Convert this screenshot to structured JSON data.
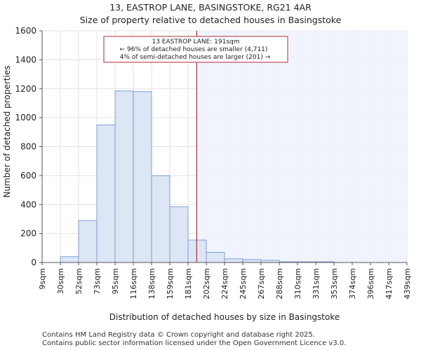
{
  "chart_data": {
    "type": "bar",
    "title": "13, EASTROP LANE, BASINGSTOKE, RG21 4AR",
    "subtitle": "Size of property relative to detached houses in Basingstoke",
    "xlabel": "Distribution of detached houses by size in Basingstoke",
    "ylabel": "Number of detached properties",
    "ylim": [
      0,
      1600
    ],
    "yticks": [
      0,
      200,
      400,
      600,
      800,
      1000,
      1200,
      1400,
      1600
    ],
    "categories": [
      "9sqm",
      "30sqm",
      "52sqm",
      "73sqm",
      "95sqm",
      "116sqm",
      "138sqm",
      "159sqm",
      "181sqm",
      "202sqm",
      "224sqm",
      "245sqm",
      "267sqm",
      "288sqm",
      "310sqm",
      "331sqm",
      "353sqm",
      "374sqm",
      "396sqm",
      "417sqm",
      "439sqm"
    ],
    "values": [
      0,
      40,
      290,
      950,
      1185,
      1180,
      600,
      385,
      155,
      70,
      25,
      20,
      15,
      5,
      5,
      5,
      0,
      0,
      0,
      0,
      0
    ],
    "marker": {
      "value_sqm": 191,
      "annotation": [
        "13 EASTROP LANE: 191sqm",
        "← 96% of detached houses are smaller (4,711)",
        "4% of semi-detached houses are larger (201) →"
      ]
    },
    "colors": {
      "bar_fill": "#dce6f5",
      "bar_stroke": "#7a9fd4",
      "marker_line": "#b22a3a",
      "highlight_region": "#eef2fb"
    }
  },
  "footer": {
    "line1": "Contains HM Land Registry data © Crown copyright and database right 2025.",
    "line2": "Contains public sector information licensed under the Open Government Licence v3.0."
  }
}
